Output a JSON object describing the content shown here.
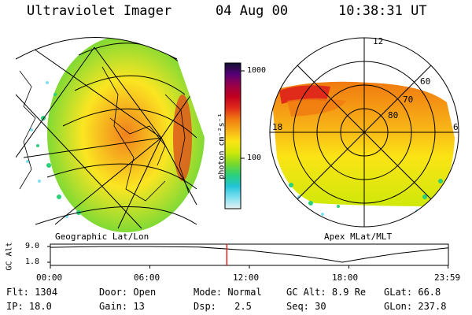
{
  "header": {
    "instrument": "Ultraviolet Imager",
    "date": "04 Aug 00",
    "time": "10:38:31 UT"
  },
  "left_panel": {
    "caption": "Geographic Lat/Lon"
  },
  "right_panel": {
    "caption": "Apex MLat/MLT",
    "mlt_labels": [
      "12",
      "18",
      "6"
    ],
    "mlat_labels": [
      "60",
      "70",
      "80"
    ]
  },
  "colorbar": {
    "unit": "photon cm⁻²s⁻¹",
    "scale": "log",
    "ticks": [
      "1000",
      "100"
    ],
    "colors": [
      "#e6f0f5",
      "#7fe0f0",
      "#22c4d8",
      "#2ad07a",
      "#7ad82a",
      "#cfe80a",
      "#fbe416",
      "#f8b017",
      "#f07a10",
      "#e02a1a",
      "#c0001e",
      "#9a0048",
      "#560078",
      "#101030"
    ]
  },
  "timeline": {
    "axis_label": "GC Alt",
    "y_ticks": [
      "9.0",
      "1.8"
    ],
    "x_ticks": [
      "00:00",
      "06:00",
      "12:00",
      "18:00",
      "23:59"
    ],
    "x_ticks_hours": [
      0,
      6,
      12,
      18,
      23.98
    ],
    "y_range": [
      1.8,
      9.0
    ],
    "x_range_hours": [
      0,
      24
    ],
    "orbit": [
      {
        "x": 0,
        "y": 8.6
      },
      {
        "x": 3,
        "y": 9.0
      },
      {
        "x": 6,
        "y": 9.0
      },
      {
        "x": 9,
        "y": 8.7
      },
      {
        "x": 12,
        "y": 7.2
      },
      {
        "x": 15,
        "y": 4.8
      },
      {
        "x": 16.5,
        "y": 3.2
      },
      {
        "x": 17.6,
        "y": 1.8
      },
      {
        "x": 19,
        "y": 3.6
      },
      {
        "x": 21,
        "y": 5.9
      },
      {
        "x": 23.98,
        "y": 8.4
      }
    ],
    "current_time_hours": 10.64,
    "current_marker_color": "#e02020"
  },
  "status": {
    "row1": [
      {
        "label": "Flt:",
        "value": "1304"
      },
      {
        "label": "Door:",
        "value": "Open"
      },
      {
        "label": "Mode:",
        "value": "Normal"
      },
      {
        "label": "GC Alt:",
        "value": "8.9 Re"
      },
      {
        "label": "GLat:",
        "value": "66.8"
      }
    ],
    "row2": [
      {
        "label": "IP:",
        "value": "18.0"
      },
      {
        "label": "Gain:",
        "value": "13"
      },
      {
        "label": "Dsp:",
        "value": "2.5"
      },
      {
        "label": "Seq:",
        "value": "30"
      },
      {
        "label": "GLon:",
        "value": "237.8"
      }
    ]
  }
}
